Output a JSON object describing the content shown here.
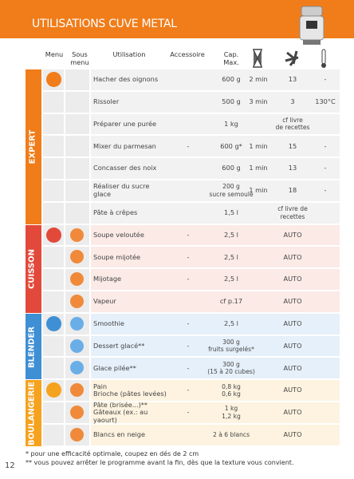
{
  "header": {
    "title": "UTILISATIONS CUVE METAL"
  },
  "columns": [
    "Menu",
    "Sous\nmenu",
    "Utilisation",
    "Accessoire",
    "Cap.\nMax."
  ],
  "sections": [
    {
      "name": "EXPERT",
      "rows": [
        {
          "utilisation": "Hacher des oignons",
          "cap": "600 g",
          "time": "2 min",
          "speed": "13",
          "temp": "-"
        },
        {
          "utilisation": "Rissoler",
          "cap": "500 g",
          "time": "3 min",
          "speed": "3",
          "temp": "130°C"
        },
        {
          "utilisation": "Préparer une purée",
          "cap": "1 kg",
          "speed": "cf livre\nde recettes"
        },
        {
          "utilisation": "Mixer du parmesan",
          "accessoire": "-",
          "cap": "600 g*",
          "time": "1 min",
          "speed": "15",
          "temp": "-"
        },
        {
          "utilisation": "Concasser des noix",
          "cap": "600 g",
          "time": "1 min",
          "speed": "13",
          "temp": "-"
        },
        {
          "utilisation": "Réaliser du sucre glace",
          "cap": "200 g\nsucre semoule",
          "time": "1 min",
          "speed": "18",
          "temp": "-"
        },
        {
          "utilisation": "Pâte à crêpes",
          "cap": "1,5 l",
          "speed": "cf livre de\nrecettes"
        }
      ]
    },
    {
      "name": "CUISSON",
      "rows": [
        {
          "utilisation": "Soupe veloutée",
          "accessoire": "-",
          "cap": "2,5 l",
          "speed": "AUTO"
        },
        {
          "utilisation": "Soupe mijotée",
          "accessoire": "-",
          "cap": "2,5 l",
          "speed": "AUTO"
        },
        {
          "utilisation": "Mijotage",
          "accessoire": "-",
          "cap": "2,5 l",
          "speed": "AUTO"
        },
        {
          "utilisation": "Vapeur",
          "cap": "cf p.17",
          "speed": "AUTO"
        }
      ]
    },
    {
      "name": "BLENDER",
      "rows": [
        {
          "utilisation": "Smoothie",
          "accessoire": "-",
          "cap": "2,5 l",
          "speed": "AUTO"
        },
        {
          "utilisation": "Dessert glacé**",
          "accessoire": "-",
          "cap": "300 g\nfruits surgelés*",
          "speed": "AUTO"
        },
        {
          "utilisation": "Glace pilée**",
          "accessoire": "-",
          "cap": "300 g\n(15 à 20 cubes)",
          "speed": "AUTO"
        }
      ]
    },
    {
      "name": "BOULANGERIE",
      "rows": [
        {
          "utilisation": "Pain\nBrioche (pâtes levées)",
          "accessoire": "-",
          "cap": "0,8 kg\n0,6 kg",
          "speed": "AUTO"
        },
        {
          "utilisation": "Pâte (brisée...)**\nGâteaux (ex.: au yaourt)",
          "accessoire": "-",
          "cap": "1 kg\n1,2 kg",
          "speed": "AUTO"
        },
        {
          "utilisation": "Blancs en neige",
          "cap": "2 à 6 blancs",
          "speed": "AUTO"
        }
      ]
    }
  ],
  "footnotes": [
    "*  pour une efficacité optimale, coupez en dés de 2 cm",
    "** vous pouvez arrêter le programme avant la fin, dès que la texture vous convient."
  ],
  "page_number": "12"
}
